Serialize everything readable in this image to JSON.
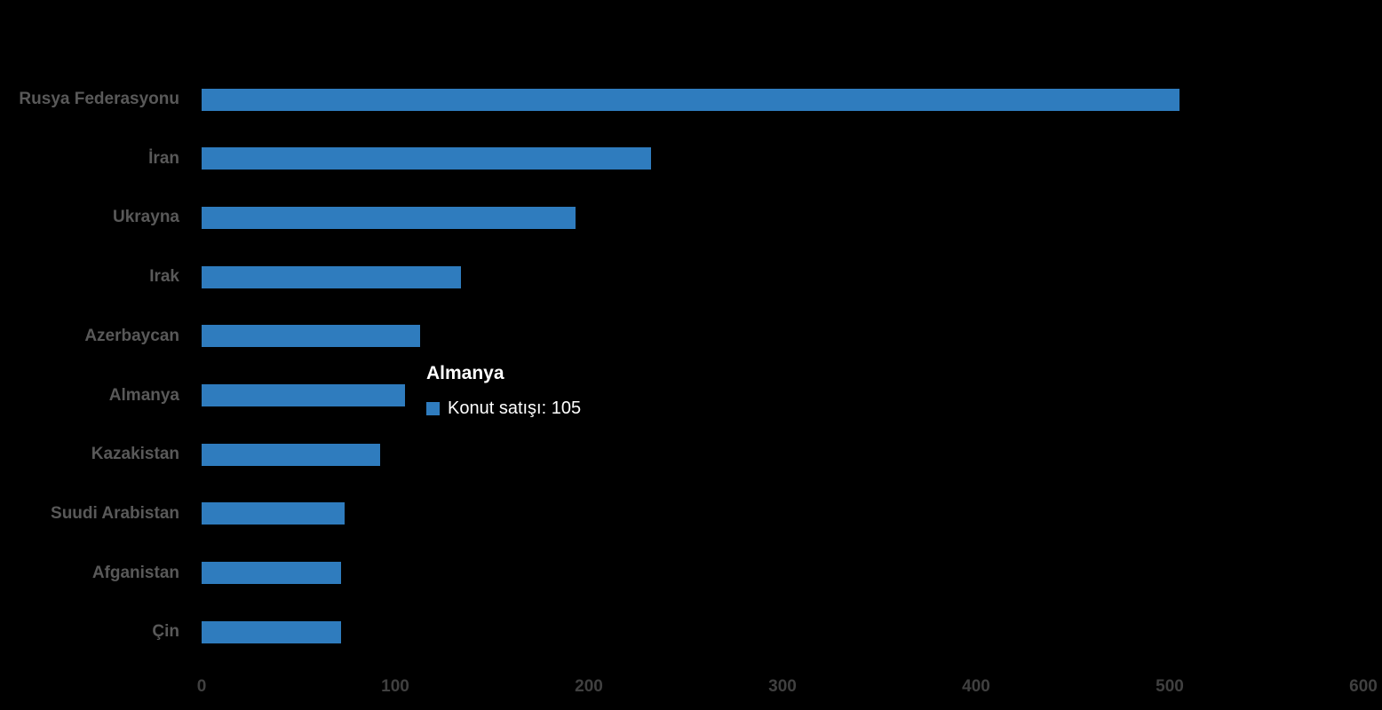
{
  "chart_data": {
    "type": "bar",
    "orientation": "horizontal",
    "title": "",
    "series_name": "Konut satışı",
    "categories": [
      "Rusya Federasyonu",
      "İran",
      "Ukrayna",
      "Irak",
      "Azerbaycan",
      "Almanya",
      "Kazakistan",
      "Suudi Arabistan",
      "Afganistan",
      "Çin"
    ],
    "values": [
      505,
      232,
      193,
      134,
      113,
      105,
      92,
      74,
      72,
      72
    ],
    "xlim": [
      0,
      600
    ],
    "x_ticks": [
      "0",
      "100",
      "200",
      "300",
      "400",
      "500",
      "600"
    ],
    "x_tick_values": [
      0,
      100,
      200,
      300,
      400,
      500,
      600
    ],
    "grid": false,
    "legend_position": "none",
    "bar_color": "#2F7CBE",
    "background_color": "#000000",
    "category_label_color": "#595959",
    "tick_label_color": "#404040"
  },
  "tooltip": {
    "title": "Almanya",
    "series_label": "Konut satışı",
    "value": "105",
    "text": "Konut satışı: 105",
    "swatch_color": "#2F7CBE",
    "target_category": "Almanya"
  }
}
